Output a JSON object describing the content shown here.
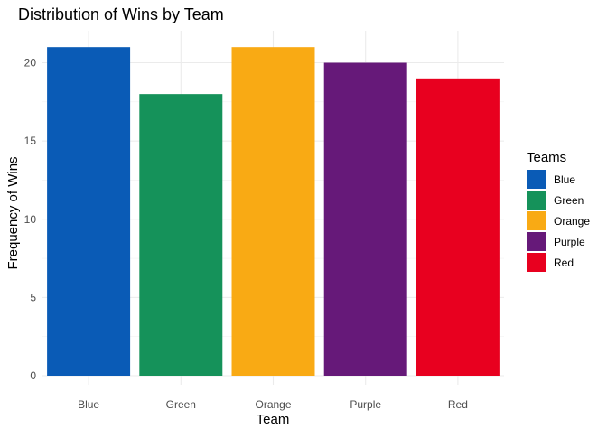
{
  "chart_data": {
    "type": "bar",
    "title": "Distribution of Wins by Team",
    "xlabel": "Team",
    "ylabel": "Frequency of Wins",
    "categories": [
      "Blue",
      "Green",
      "Orange",
      "Purple",
      "Red"
    ],
    "values": [
      21,
      18,
      21,
      20,
      19
    ],
    "colors": [
      "#0a5bb6",
      "#15925a",
      "#f9aa14",
      "#661979",
      "#e8001f"
    ],
    "ylim": [
      0,
      22
    ],
    "yticks": [
      0,
      5,
      10,
      15,
      20
    ],
    "grid": true,
    "legend": {
      "title": "Teams",
      "position": "right",
      "items": [
        "Blue",
        "Green",
        "Orange",
        "Purple",
        "Red"
      ]
    }
  }
}
